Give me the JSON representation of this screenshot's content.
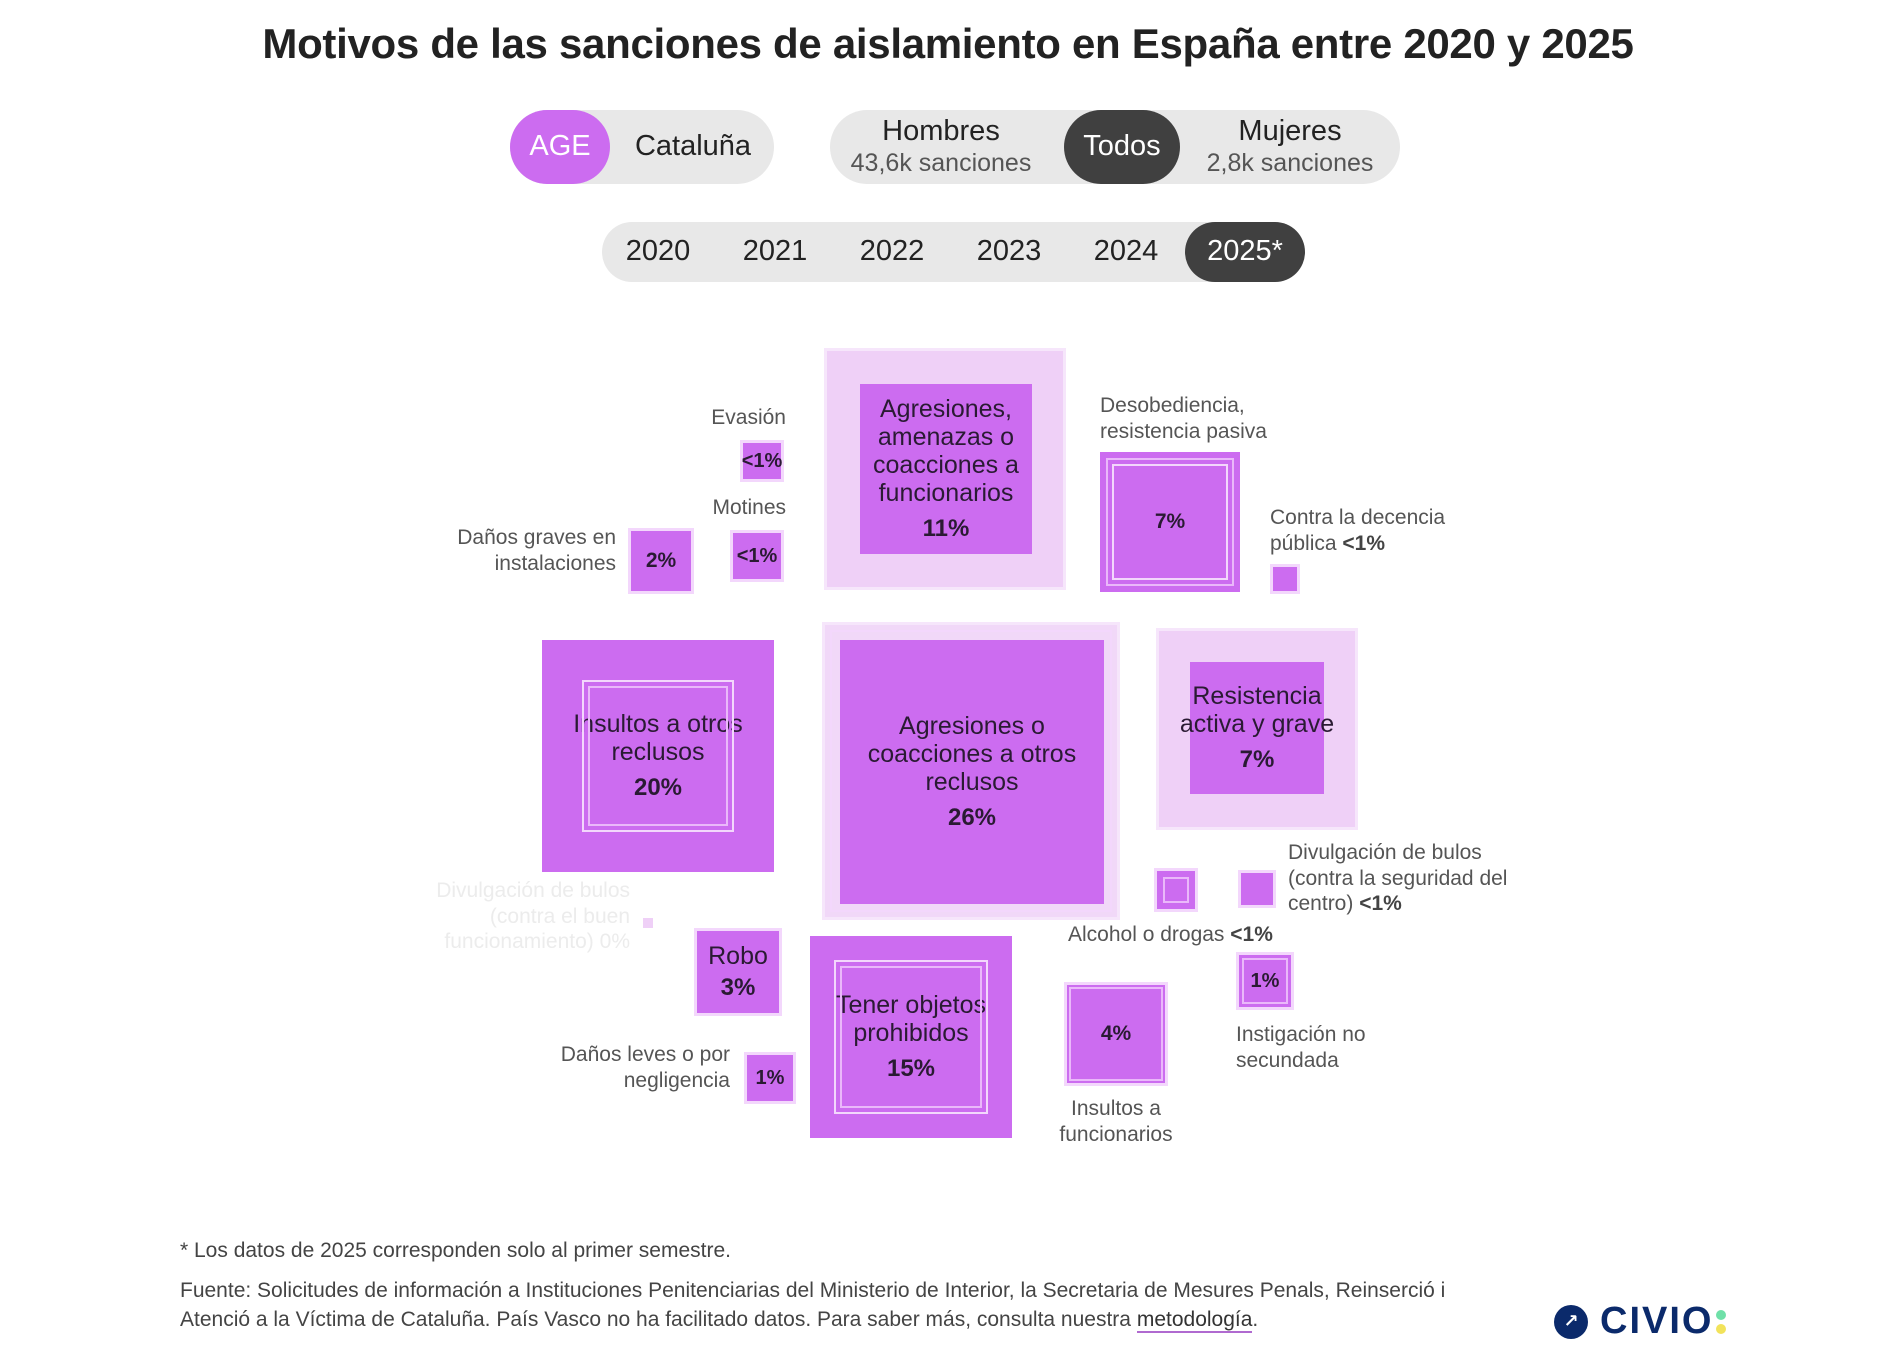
{
  "title": "Motivos de las sanciones de aislamiento en España entre 2020 y 2025",
  "filters": {
    "region": {
      "options": [
        "AGE",
        "Cataluña"
      ],
      "selected": "AGE"
    },
    "gender": {
      "hombres": {
        "label": "Hombres",
        "sub": "43,6k sanciones"
      },
      "todos": {
        "label": "Todos"
      },
      "mujeres": {
        "label": "Mujeres",
        "sub": "2,8k sanciones"
      },
      "selected": "Todos"
    },
    "years": {
      "options": [
        "2020",
        "2021",
        "2022",
        "2023",
        "2024",
        "2025*"
      ],
      "selected": "2025*"
    }
  },
  "colors": {
    "accent": "#cc6cf0",
    "dark": "#404040",
    "light": "#efd0f7"
  },
  "chart_data": {
    "type": "proportional-squares",
    "title": "Motivos de las sanciones de aislamiento en España entre 2020 y 2025",
    "unit": "% of sanciones (2025*, Todos, AGE)",
    "items": [
      {
        "name": "Agresiones o coacciones a otros reclusos",
        "label_text": "Agresiones o coacciones a otros reclusos",
        "value": "26%"
      },
      {
        "name": "Insultos a otros reclusos",
        "label_text": "Insultos a otros reclusos",
        "value": "20%"
      },
      {
        "name": "Tener objetos prohibidos",
        "label_text": "Tener objetos prohibidos",
        "value": "15%"
      },
      {
        "name": "Agresiones, amenazas o coacciones a funcionarios",
        "label_text": "Agresiones, amenazas o coacciones a funcionarios",
        "value": "11%"
      },
      {
        "name": "Desobediencia, resistencia pasiva",
        "label_text": "Desobediencia, resistencia pasiva",
        "value": "7%"
      },
      {
        "name": "Resistencia activa y grave",
        "label_text": "Resistencia activa y grave",
        "value": "7%"
      },
      {
        "name": "Insultos a funcionarios",
        "label_text": "Insultos a funcionarios",
        "value": "4%"
      },
      {
        "name": "Robo",
        "label_text": "Robo",
        "value": "3%"
      },
      {
        "name": "Daños graves en instalaciones",
        "label_text": "Daños graves en instalaciones",
        "value": "2%"
      },
      {
        "name": "Daños leves o por negligencia",
        "label_text": "Daños leves o por negligencia",
        "value": "1%"
      },
      {
        "name": "Instigación no secundada",
        "label_text": "Instigación no secundada",
        "value": "1%"
      },
      {
        "name": "Evasión",
        "label_text": "Evasión",
        "value": "<1%"
      },
      {
        "name": "Motines",
        "label_text": "Motines",
        "value": "<1%"
      },
      {
        "name": "Contra la decencia pública",
        "label_text": "Contra la decencia pública",
        "value": "<1%"
      },
      {
        "name": "Alcohol o drogas",
        "label_text": "Alcohol o drogas",
        "value": "<1%"
      },
      {
        "name": "Divulgación de bulos (contra la seguridad del centro)",
        "label_text": "Divulgación de bulos (contra la seguridad del centro)",
        "value": "<1%"
      },
      {
        "name": "Divulgación de bulos (contra el buen funcionamiento)",
        "label_text": "Divulgación de bulos (contra el buen funcionamiento)",
        "value": "0%"
      }
    ]
  },
  "footer": {
    "note": "* Los datos de 2025 corresponden solo al primer semestre.",
    "source_prefix": "Fuente: Solicitudes de información a Instituciones Penitenciarias del Ministerio de Interior, la Secretaria de Mesures Penals, Reinserció i Atenció a la Víctima de Cataluña. País Vasco no ha facilitado datos. Para saber más, consulta nuestra",
    "link_text": "metodología",
    "period": "."
  },
  "logo": {
    "text": "CIVIO"
  }
}
